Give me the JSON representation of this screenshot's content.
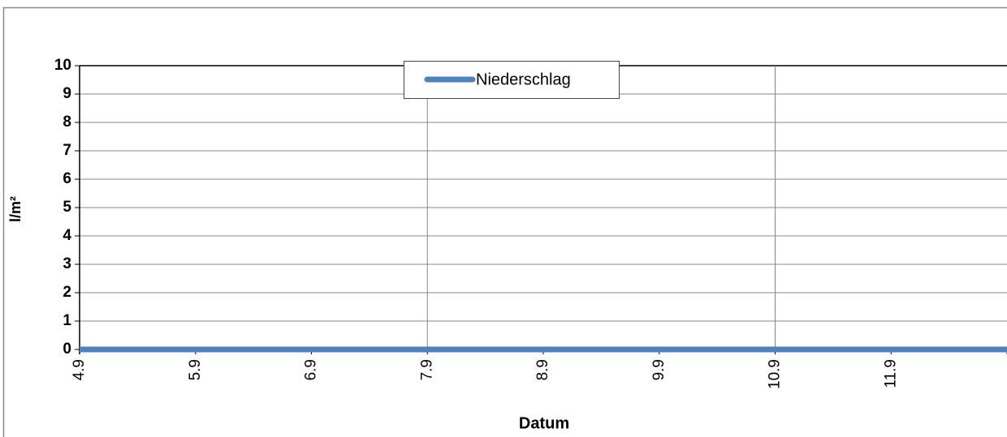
{
  "chart_data": {
    "type": "line",
    "xlabel": "Datum",
    "ylabel": "l/m²",
    "categories": [
      "4.9",
      "5.9",
      "6.9",
      "7.9",
      "8.9",
      "9.9",
      "10.9",
      "11.9",
      null
    ],
    "series": [
      {
        "name": "Niederschlag",
        "color": "#4f81bd",
        "values": [
          0,
          0,
          0,
          0,
          0,
          0,
          0,
          0,
          0
        ]
      }
    ],
    "ylim": [
      0,
      10
    ],
    "yticks": [
      0,
      1,
      2,
      3,
      4,
      5,
      6,
      7,
      8,
      9,
      10
    ],
    "grid": true,
    "x_grid_interval": 3,
    "legend": "top"
  }
}
